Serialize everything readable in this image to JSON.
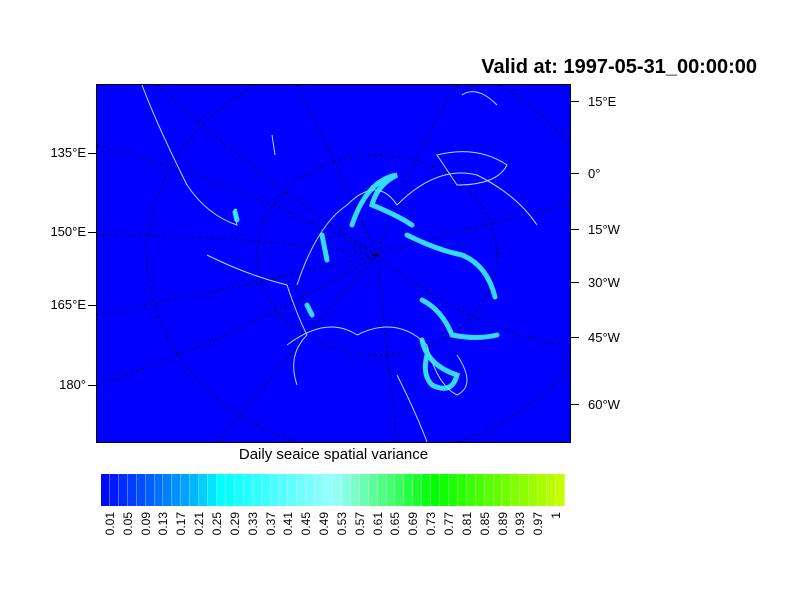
{
  "title": "Valid at: 1997-05-31_00:00:00",
  "map": {
    "left_labels": [
      "135°E",
      "150°E",
      "165°E",
      "180°"
    ],
    "right_labels": [
      "15°E",
      "0°",
      "15°W",
      "30°W",
      "45°W",
      "60°W"
    ],
    "ocean_color": "#0000ff",
    "coast_color": "#a0e0ff"
  },
  "colorbar": {
    "title": "Daily seaice spatial variance",
    "labels": [
      "0.01",
      "0.05",
      "0.09",
      "0.13",
      "0.17",
      "0.21",
      "0.25",
      "0.29",
      "0.33",
      "0.37",
      "0.41",
      "0.45",
      "0.49",
      "0.53",
      "0.57",
      "0.61",
      "0.65",
      "0.69",
      "0.73",
      "0.77",
      "0.81",
      "0.85",
      "0.89",
      "0.93",
      "0.97",
      "1"
    ],
    "color_stops": [
      [
        0,
        "#0000ff"
      ],
      [
        0.2,
        "#00b4ff"
      ],
      [
        0.26,
        "#00ffff"
      ],
      [
        0.5,
        "#99ffff"
      ],
      [
        0.72,
        "#00ff00"
      ],
      [
        1,
        "#ccff00"
      ]
    ]
  }
}
